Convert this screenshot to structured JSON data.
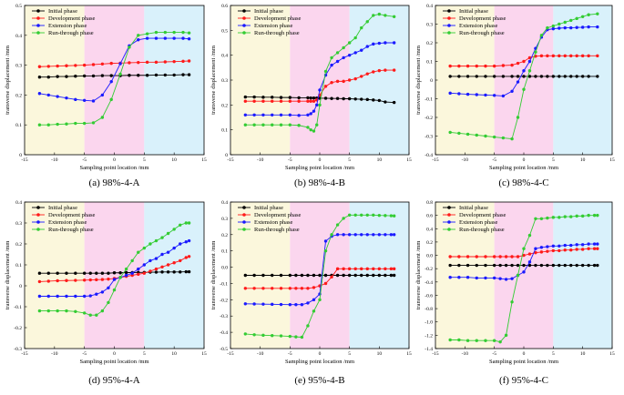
{
  "shared": {
    "xlabel": "Sampling point location /mm",
    "ylabel": "transverse displacement /mm",
    "legend_position": "top-left",
    "region_colors": [
      "#fbf7dc",
      "#fbd6ee",
      "#d9f1fb"
    ],
    "series_colors": [
      "#000000",
      "#ff1a1a",
      "#1a1aff",
      "#33cc33"
    ],
    "series_names": [
      "Initial phase",
      "Development phase",
      "Extension phase",
      "Run-through phase"
    ]
  },
  "chart_data": [
    {
      "type": "line",
      "caption": "(a) 98%-4-A",
      "xlim": [
        -15,
        15
      ],
      "xticks": [
        -15,
        -10,
        -5,
        0,
        5,
        10,
        15
      ],
      "ylim": [
        0,
        0.5
      ],
      "yticks": [
        0,
        0.1,
        0.2,
        0.3,
        0.4,
        0.5
      ],
      "ytick_labels": [
        "0",
        "0.1",
        "0.2",
        "0.3",
        "0.4",
        "0.5"
      ],
      "regions": [
        [
          -15,
          -5
        ],
        [
          -5,
          5
        ],
        [
          5,
          15
        ]
      ],
      "x": [
        -12.5,
        -11,
        -9.5,
        -8,
        -6.5,
        -5,
        -3.5,
        -2,
        -0.5,
        1,
        2.5,
        4,
        5.5,
        7,
        8.5,
        10,
        11.5,
        12.5
      ],
      "series": [
        {
          "name": "Initial phase",
          "values": [
            0.26,
            0.26,
            0.262,
            0.262,
            0.263,
            0.264,
            0.264,
            0.265,
            0.265,
            0.265,
            0.266,
            0.266,
            0.266,
            0.267,
            0.267,
            0.267,
            0.268,
            0.268
          ]
        },
        {
          "name": "Development phase",
          "values": [
            0.295,
            0.296,
            0.297,
            0.298,
            0.299,
            0.3,
            0.302,
            0.304,
            0.306,
            0.307,
            0.308,
            0.309,
            0.31,
            0.31,
            0.311,
            0.312,
            0.313,
            0.314
          ]
        },
        {
          "name": "Extension phase",
          "values": [
            0.205,
            0.2,
            0.195,
            0.19,
            0.185,
            0.182,
            0.18,
            0.2,
            0.245,
            0.305,
            0.365,
            0.385,
            0.39,
            0.39,
            0.39,
            0.39,
            0.39,
            0.388
          ]
        },
        {
          "name": "Run-through phase",
          "values": [
            0.1,
            0.1,
            0.102,
            0.103,
            0.105,
            0.105,
            0.107,
            0.125,
            0.185,
            0.27,
            0.36,
            0.4,
            0.405,
            0.41,
            0.41,
            0.41,
            0.41,
            0.408
          ]
        }
      ]
    },
    {
      "type": "line",
      "caption": "(b) 98%-4-B",
      "xlim": [
        -15,
        15
      ],
      "xticks": [
        -15,
        -10,
        -5,
        0,
        5,
        10,
        15
      ],
      "ylim": [
        0,
        0.6
      ],
      "yticks": [
        0,
        0.1,
        0.2,
        0.3,
        0.4,
        0.5,
        0.6
      ],
      "ytick_labels": [
        "0",
        "0.1",
        "0.2",
        "0.3",
        "0.4",
        "0.5",
        "0.6"
      ],
      "regions": [
        [
          -15,
          -5
        ],
        [
          -5,
          5
        ],
        [
          5,
          15
        ]
      ],
      "x": [
        -12.5,
        -11,
        -9.5,
        -8,
        -6.5,
        -5,
        -3.5,
        -2,
        -1.5,
        -1,
        -0.5,
        0,
        1,
        2,
        3,
        4,
        5,
        6,
        7,
        8,
        9,
        10,
        11,
        12.5
      ],
      "series": [
        {
          "name": "Initial phase",
          "values": [
            0.232,
            0.232,
            0.231,
            0.231,
            0.23,
            0.23,
            0.229,
            0.229,
            0.228,
            0.228,
            0.228,
            0.227,
            0.227,
            0.226,
            0.226,
            0.225,
            0.225,
            0.224,
            0.223,
            0.222,
            0.22,
            0.218,
            0.212,
            0.21
          ]
        },
        {
          "name": "Development phase",
          "values": [
            0.215,
            0.215,
            0.215,
            0.215,
            0.215,
            0.215,
            0.215,
            0.215,
            0.215,
            0.215,
            0.22,
            0.24,
            0.275,
            0.29,
            0.295,
            0.295,
            0.3,
            0.305,
            0.315,
            0.325,
            0.333,
            0.338,
            0.34,
            0.34
          ]
        },
        {
          "name": "Extension phase",
          "values": [
            0.16,
            0.16,
            0.16,
            0.16,
            0.16,
            0.16,
            0.158,
            0.16,
            0.165,
            0.175,
            0.2,
            0.26,
            0.32,
            0.36,
            0.375,
            0.39,
            0.4,
            0.41,
            0.42,
            0.435,
            0.445,
            0.448,
            0.45,
            0.45
          ]
        },
        {
          "name": "Run-through phase",
          "values": [
            0.12,
            0.12,
            0.12,
            0.12,
            0.12,
            0.12,
            0.118,
            0.11,
            0.1,
            0.095,
            0.12,
            0.2,
            0.335,
            0.39,
            0.41,
            0.43,
            0.45,
            0.47,
            0.51,
            0.535,
            0.56,
            0.565,
            0.56,
            0.555
          ]
        }
      ]
    },
    {
      "type": "line",
      "caption": "(c) 98%-4-C",
      "xlim": [
        -15,
        15
      ],
      "xticks": [
        -15,
        -10,
        -5,
        0,
        5,
        10,
        15
      ],
      "ylim": [
        -0.4,
        0.4
      ],
      "yticks": [
        -0.4,
        -0.3,
        -0.2,
        -0.1,
        0,
        0.1,
        0.2,
        0.3,
        0.4
      ],
      "ytick_labels": [
        "-0.4",
        "-0.3",
        "-0.2",
        "-0.1",
        "0",
        "0.1",
        "0.2",
        "0.3",
        "0.4"
      ],
      "regions": [
        [
          -15,
          -5
        ],
        [
          -5,
          5
        ],
        [
          5,
          15
        ]
      ],
      "x": [
        -12.5,
        -11,
        -9.5,
        -8,
        -6.5,
        -5,
        -3.5,
        -2,
        -1,
        0,
        1,
        2,
        3,
        4,
        5,
        6,
        7,
        8,
        9,
        10,
        11,
        12.5
      ],
      "series": [
        {
          "name": "Initial phase",
          "values": [
            0.02,
            0.02,
            0.02,
            0.02,
            0.02,
            0.02,
            0.02,
            0.02,
            0.02,
            0.02,
            0.02,
            0.02,
            0.02,
            0.02,
            0.02,
            0.02,
            0.02,
            0.02,
            0.02,
            0.02,
            0.02,
            0.02
          ]
        },
        {
          "name": "Development phase",
          "values": [
            0.075,
            0.075,
            0.075,
            0.075,
            0.075,
            0.075,
            0.078,
            0.08,
            0.09,
            0.1,
            0.12,
            0.128,
            0.13,
            0.13,
            0.13,
            0.13,
            0.13,
            0.13,
            0.13,
            0.13,
            0.13,
            0.13
          ]
        },
        {
          "name": "Extension phase",
          "values": [
            -0.07,
            -0.073,
            -0.076,
            -0.078,
            -0.08,
            -0.082,
            -0.085,
            -0.06,
            -0.01,
            0.05,
            0.1,
            0.17,
            0.23,
            0.27,
            0.275,
            0.278,
            0.28,
            0.28,
            0.282,
            0.283,
            0.285,
            0.285
          ]
        },
        {
          "name": "Run-through phase",
          "values": [
            -0.28,
            -0.285,
            -0.29,
            -0.295,
            -0.3,
            -0.305,
            -0.31,
            -0.315,
            -0.2,
            -0.05,
            0.05,
            0.15,
            0.24,
            0.28,
            0.29,
            0.3,
            0.31,
            0.32,
            0.33,
            0.34,
            0.35,
            0.355
          ]
        }
      ]
    },
    {
      "type": "line",
      "caption": "(d) 95%-4-A",
      "xlim": [
        -15,
        15
      ],
      "xticks": [
        -15,
        -10,
        -5,
        0,
        5,
        10,
        15
      ],
      "ylim": [
        -0.3,
        0.4
      ],
      "yticks": [
        -0.3,
        -0.2,
        -0.1,
        0,
        0.1,
        0.2,
        0.3,
        0.4
      ],
      "ytick_labels": [
        "-0.3",
        "-0.2",
        "-0.1",
        "0",
        "0.1",
        "0.2",
        "0.3",
        "0.4"
      ],
      "regions": [
        [
          -15,
          -5
        ],
        [
          -5,
          5
        ],
        [
          5,
          15
        ]
      ],
      "x": [
        -12.5,
        -11,
        -9.5,
        -8,
        -6.5,
        -5,
        -4,
        -3,
        -2,
        -1,
        0,
        1,
        2,
        3,
        4,
        5,
        6,
        7,
        8,
        9,
        10,
        11,
        12,
        12.5
      ],
      "series": [
        {
          "name": "Initial phase",
          "values": [
            0.06,
            0.06,
            0.06,
            0.06,
            0.06,
            0.06,
            0.06,
            0.06,
            0.06,
            0.06,
            0.062,
            0.062,
            0.063,
            0.063,
            0.064,
            0.064,
            0.065,
            0.065,
            0.066,
            0.066,
            0.066,
            0.066,
            0.067,
            0.067
          ]
        },
        {
          "name": "Development phase",
          "values": [
            0.02,
            0.022,
            0.024,
            0.025,
            0.026,
            0.027,
            0.028,
            0.029,
            0.03,
            0.032,
            0.035,
            0.04,
            0.045,
            0.05,
            0.055,
            0.06,
            0.07,
            0.08,
            0.09,
            0.1,
            0.11,
            0.12,
            0.135,
            0.14
          ]
        },
        {
          "name": "Extension phase",
          "values": [
            -0.05,
            -0.05,
            -0.05,
            -0.05,
            -0.05,
            -0.05,
            -0.048,
            -0.04,
            -0.03,
            -0.01,
            0.03,
            0.04,
            0.05,
            0.06,
            0.08,
            0.1,
            0.12,
            0.13,
            0.15,
            0.16,
            0.18,
            0.2,
            0.21,
            0.215
          ]
        },
        {
          "name": "Run-through phase",
          "values": [
            -0.12,
            -0.12,
            -0.12,
            -0.12,
            -0.123,
            -0.13,
            -0.14,
            -0.14,
            -0.12,
            -0.08,
            -0.02,
            0.04,
            0.08,
            0.12,
            0.16,
            0.18,
            0.2,
            0.215,
            0.23,
            0.25,
            0.27,
            0.29,
            0.3,
            0.3
          ]
        }
      ]
    },
    {
      "type": "line",
      "caption": "(e) 95%-4-B",
      "xlim": [
        -15,
        15
      ],
      "xticks": [
        -15,
        -10,
        -5,
        0,
        5,
        10,
        15
      ],
      "ylim": [
        -0.5,
        0.4
      ],
      "yticks": [
        -0.5,
        -0.4,
        -0.3,
        -0.2,
        -0.1,
        0,
        0.1,
        0.2,
        0.3,
        0.4
      ],
      "ytick_labels": [
        "-0.5",
        "-0.4",
        "-0.3",
        "-0.2",
        "-0.1",
        "0.0",
        "0.1",
        "0.2",
        "0.3",
        "0.4"
      ],
      "regions": [
        [
          -15,
          -5
        ],
        [
          -5,
          5
        ],
        [
          5,
          15
        ]
      ],
      "x": [
        -12.5,
        -11,
        -9.5,
        -8,
        -6.5,
        -5,
        -4,
        -3,
        -2,
        -1,
        0,
        1,
        2,
        3,
        4,
        5,
        6,
        7,
        8,
        9,
        10,
        11,
        12,
        12.5
      ],
      "series": [
        {
          "name": "Initial phase",
          "values": [
            -0.05,
            -0.05,
            -0.05,
            -0.05,
            -0.05,
            -0.05,
            -0.05,
            -0.05,
            -0.05,
            -0.05,
            -0.05,
            -0.05,
            -0.05,
            -0.05,
            -0.05,
            -0.05,
            -0.05,
            -0.05,
            -0.05,
            -0.05,
            -0.05,
            -0.05,
            -0.05,
            -0.05
          ]
        },
        {
          "name": "Development phase",
          "values": [
            -0.13,
            -0.13,
            -0.13,
            -0.13,
            -0.13,
            -0.13,
            -0.13,
            -0.13,
            -0.13,
            -0.125,
            -0.115,
            -0.1,
            -0.06,
            -0.01,
            -0.01,
            -0.01,
            -0.01,
            -0.01,
            -0.01,
            -0.01,
            -0.01,
            -0.01,
            -0.01,
            -0.01
          ]
        },
        {
          "name": "Extension phase",
          "values": [
            -0.225,
            -0.226,
            -0.227,
            -0.228,
            -0.229,
            -0.23,
            -0.23,
            -0.23,
            -0.22,
            -0.2,
            -0.165,
            0.16,
            0.19,
            0.2,
            0.2,
            0.2,
            0.2,
            0.2,
            0.2,
            0.2,
            0.2,
            0.2,
            0.2,
            0.2
          ]
        },
        {
          "name": "Run-through phase",
          "values": [
            -0.41,
            -0.415,
            -0.418,
            -0.42,
            -0.422,
            -0.425,
            -0.428,
            -0.43,
            -0.36,
            -0.27,
            -0.2,
            0.1,
            0.2,
            0.26,
            0.3,
            0.32,
            0.32,
            0.32,
            0.32,
            0.32,
            0.318,
            0.317,
            0.316,
            0.315
          ]
        }
      ]
    },
    {
      "type": "line",
      "caption": "(f) 95%-4-C",
      "xlim": [
        -15,
        15
      ],
      "xticks": [
        -15,
        -10,
        -5,
        0,
        5,
        10,
        15
      ],
      "ylim": [
        -1.4,
        0.8
      ],
      "yticks": [
        -1.4,
        -1.2,
        -1.0,
        -0.8,
        -0.6,
        -0.4,
        -0.2,
        0,
        0.2,
        0.4,
        0.6,
        0.8
      ],
      "ytick_labels": [
        "-1.4",
        "-1.2",
        "-1.0",
        "-0.8",
        "-0.6",
        "-0.4",
        "-0.2",
        "0.0",
        "0.2",
        "0.4",
        "0.6",
        "0.8"
      ],
      "regions": [
        [
          -15,
          -5
        ],
        [
          -5,
          5
        ],
        [
          5,
          15
        ]
      ],
      "x": [
        -12.5,
        -11,
        -9.5,
        -8,
        -6.5,
        -5,
        -4,
        -3,
        -2,
        -1,
        0,
        1,
        2,
        3,
        4,
        5,
        6,
        7,
        8,
        9,
        10,
        11,
        12,
        12.5
      ],
      "series": [
        {
          "name": "Initial phase",
          "values": [
            -0.15,
            -0.15,
            -0.15,
            -0.15,
            -0.15,
            -0.15,
            -0.15,
            -0.15,
            -0.15,
            -0.15,
            -0.15,
            -0.15,
            -0.15,
            -0.15,
            -0.15,
            -0.15,
            -0.15,
            -0.15,
            -0.15,
            -0.15,
            -0.15,
            -0.15,
            -0.15,
            -0.15
          ]
        },
        {
          "name": "Development phase",
          "values": [
            -0.02,
            -0.02,
            -0.02,
            -0.02,
            -0.02,
            -0.02,
            -0.02,
            -0.02,
            -0.02,
            -0.02,
            0.0,
            0.02,
            0.04,
            0.05,
            0.06,
            0.07,
            0.07,
            0.08,
            0.08,
            0.09,
            0.09,
            0.1,
            0.1,
            0.1
          ]
        },
        {
          "name": "Extension phase",
          "values": [
            -0.33,
            -0.33,
            -0.33,
            -0.34,
            -0.34,
            -0.34,
            -0.35,
            -0.36,
            -0.35,
            -0.3,
            -0.25,
            -0.1,
            0.1,
            0.12,
            0.13,
            0.14,
            0.14,
            0.15,
            0.15,
            0.16,
            0.16,
            0.17,
            0.17,
            0.17
          ]
        },
        {
          "name": "Run-through phase",
          "values": [
            -1.27,
            -1.27,
            -1.28,
            -1.28,
            -1.28,
            -1.28,
            -1.3,
            -1.2,
            -0.7,
            -0.3,
            0.1,
            0.3,
            0.55,
            0.55,
            0.56,
            0.57,
            0.57,
            0.58,
            0.58,
            0.59,
            0.59,
            0.6,
            0.6,
            0.6
          ]
        }
      ]
    }
  ]
}
